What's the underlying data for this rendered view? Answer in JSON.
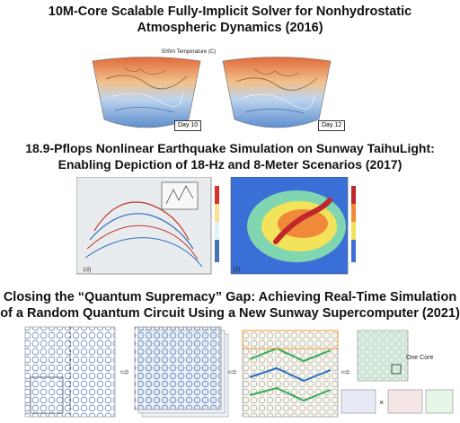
{
  "section1": {
    "title_line1": "10M-Core Scalable Fully-Implicit Solver for Nonhydrostatic",
    "title_line2": "Atmospheric Dynamics  (2016)",
    "plot_title": "500m Temperature (C)",
    "day_left": "Day 10",
    "day_right": "Day 12"
  },
  "section2": {
    "title_line1": "18.9-Pflops Nonlinear Earthquake Simulation on Sunway TaihuLight:",
    "title_line2": "Enabling Depiction of 18-Hz and 8-Meter Scenarios   (2017)",
    "panel_d": "(d)",
    "panel_f": "(f)"
  },
  "section3": {
    "title_line1": "Closing the  “Quantum Supremacy”  Gap: Achieving Real-Time Simulation",
    "title_line2": "of a Random Quantum Circuit Using a New Sunway Supercomputer  (2021)",
    "one_core_label": "One Core"
  },
  "colors": {
    "title": "#111111",
    "warm": "#e7a26a",
    "cool": "#7aa7d8",
    "grid_blue": "#5577aa",
    "grid_green": "#33aa55",
    "grid_orange": "#ee9933"
  }
}
